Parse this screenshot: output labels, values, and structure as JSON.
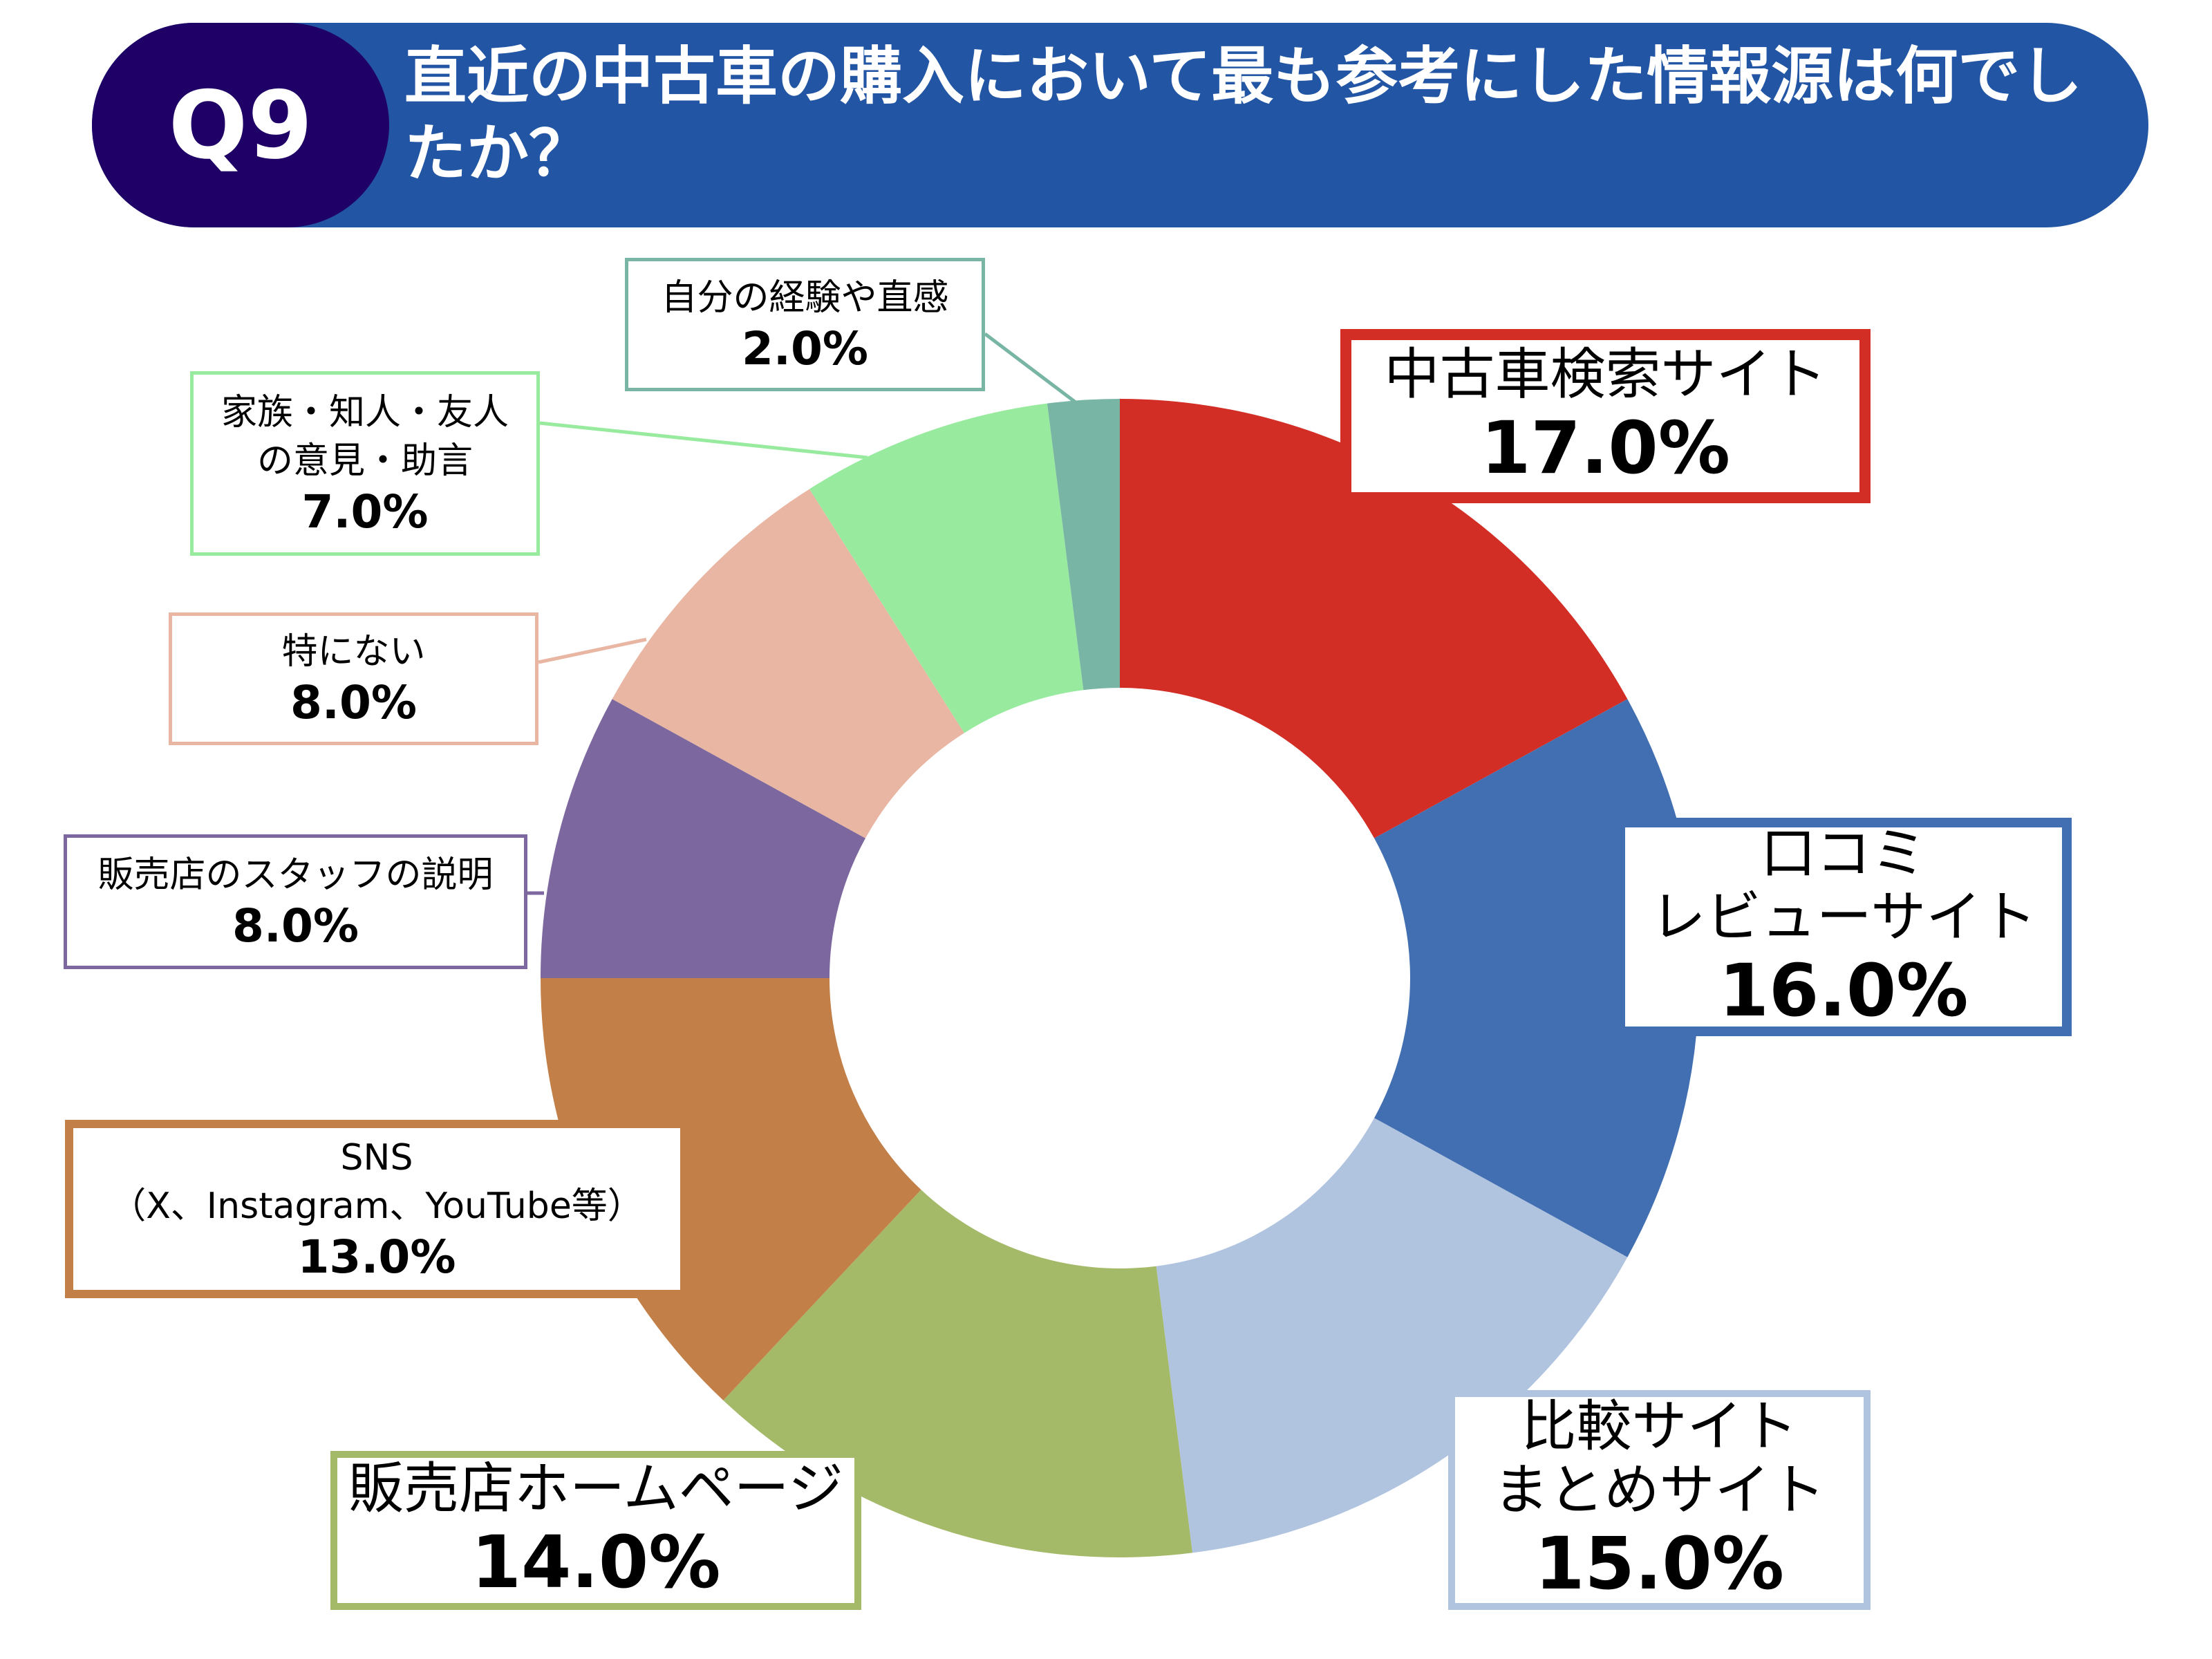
{
  "header": {
    "badge": "Q9",
    "title": "直近の中古車の購入において最も参考にした情報源は何でしたか？",
    "colors": {
      "badge": "#1F0066",
      "bar": "#2256A4"
    }
  },
  "chart_data": {
    "type": "donut",
    "unit": "%",
    "start": "top",
    "direction": "clockwise",
    "slices": [
      {
        "label": "中古車検索サイト",
        "value": 17.0,
        "display": "17.0%",
        "color": "#D22E25"
      },
      {
        "label": "口コミ\nレビューサイト",
        "value": 16.0,
        "display": "16.0%",
        "color": "#426FB1"
      },
      {
        "label": "比較サイト\nまとめサイト",
        "value": 15.0,
        "display": "15.0%",
        "color": "#B0C4E0"
      },
      {
        "label": "販売店ホームページ",
        "value": 14.0,
        "display": "14.0%",
        "color": "#A5BA69"
      },
      {
        "label": "SNS\n（X、Instagram、YouTube等）",
        "value": 13.0,
        "display": "13.0%",
        "color": "#C27F48"
      },
      {
        "label": "販売店のスタッフの説明",
        "value": 8.0,
        "display": "8.0%",
        "color": "#7C679E"
      },
      {
        "label": "特にない",
        "value": 8.0,
        "display": "8.0%",
        "color": "#E8B6A2"
      },
      {
        "label": "家族・知人・友人\nの意見・助言",
        "value": 7.0,
        "display": "7.0%",
        "color": "#98EB9E"
      },
      {
        "label": "自分の経験や直感",
        "value": 2.0,
        "display": "2.0%",
        "color": "#78B5A5"
      }
    ]
  }
}
